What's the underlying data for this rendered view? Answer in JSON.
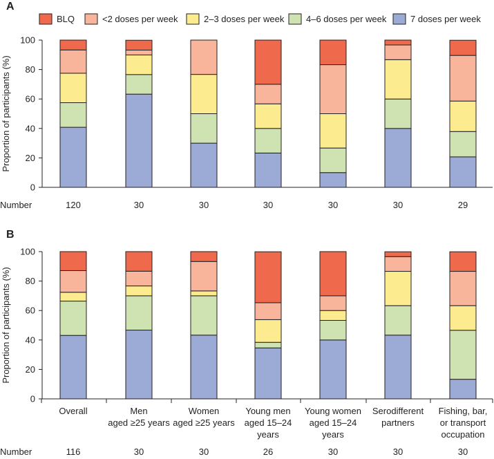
{
  "colors": {
    "BLQ": "#ef6a4c",
    "lt2": "#f9b49c",
    "d23": "#fdeb8f",
    "d46": "#cfe3b2",
    "d7": "#9caad6",
    "stroke": "#231f20"
  },
  "legend": [
    {
      "key": "BLQ",
      "label": "BLQ"
    },
    {
      "key": "lt2",
      "label": "<2 doses per week"
    },
    {
      "key": "d23",
      "label": "2–3 doses per week"
    },
    {
      "key": "d46",
      "label": "4–6 doses per week"
    },
    {
      "key": "d7",
      "label": "7 doses per week"
    }
  ],
  "chart_data": [
    {
      "type": "bar",
      "stacked": true,
      "panel": "A",
      "ylabel": "Proportion of participants (%)",
      "ylim": [
        0,
        100
      ],
      "yticks": [
        0,
        20,
        40,
        60,
        80,
        100
      ],
      "number_label": "Number",
      "numbers": [
        "120",
        "30",
        "30",
        "30",
        "30",
        "30",
        "29"
      ],
      "series_order": [
        "d7",
        "d46",
        "d23",
        "lt2",
        "BLQ"
      ],
      "series": [
        {
          "name": "7 doses per week",
          "key": "d7",
          "values": [
            40.8,
            63.3,
            30.0,
            23.3,
            10.0,
            40.0,
            20.7
          ]
        },
        {
          "name": "4–6 doses per week",
          "key": "d46",
          "values": [
            16.7,
            13.3,
            20.0,
            16.7,
            16.7,
            20.0,
            17.2
          ]
        },
        {
          "name": "2–3 doses per week",
          "key": "d23",
          "values": [
            20.0,
            13.3,
            26.7,
            16.7,
            23.3,
            26.7,
            20.7
          ]
        },
        {
          "name": "<2 doses per week",
          "key": "lt2",
          "values": [
            15.8,
            3.3,
            23.3,
            13.3,
            33.3,
            10.0,
            31.0
          ]
        },
        {
          "name": "BLQ",
          "key": "BLQ",
          "values": [
            6.7,
            6.7,
            0.0,
            30.0,
            16.7,
            3.3,
            10.3
          ]
        }
      ]
    },
    {
      "type": "bar",
      "stacked": true,
      "panel": "B",
      "ylabel": "Proportion of participants (%)",
      "ylim": [
        0,
        100
      ],
      "yticks": [
        0,
        20,
        40,
        60,
        80,
        100
      ],
      "categories": [
        [
          "Overall"
        ],
        [
          "Men",
          "aged ≥25 years"
        ],
        [
          "Women",
          "aged ≥25 years"
        ],
        [
          "Young men",
          "aged 15–24",
          "years"
        ],
        [
          "Young women",
          "aged 15–24",
          "years"
        ],
        [
          "Serodifferent",
          "partners"
        ],
        [
          "Fishing, bar,",
          "or transport",
          "occupation"
        ]
      ],
      "number_label": "Number",
      "numbers": [
        "116",
        "30",
        "30",
        "26",
        "30",
        "30",
        "30"
      ],
      "series_order": [
        "d7",
        "d46",
        "d23",
        "lt2",
        "BLQ"
      ],
      "series": [
        {
          "name": "7 doses per week",
          "key": "d7",
          "values": [
            43.1,
            46.7,
            43.3,
            34.6,
            40.0,
            43.3,
            13.3
          ]
        },
        {
          "name": "4–6 doses per week",
          "key": "d46",
          "values": [
            23.3,
            23.3,
            26.7,
            3.8,
            13.3,
            20.0,
            33.3
          ]
        },
        {
          "name": "2–3 doses per week",
          "key": "d23",
          "values": [
            6.0,
            6.7,
            3.3,
            15.4,
            6.7,
            23.3,
            16.7
          ]
        },
        {
          "name": "<2 doses per week",
          "key": "lt2",
          "values": [
            14.7,
            10.0,
            20.0,
            11.5,
            10.0,
            10.0,
            23.3
          ]
        },
        {
          "name": "BLQ",
          "key": "BLQ",
          "values": [
            12.9,
            13.3,
            6.7,
            34.6,
            30.0,
            3.3,
            13.3
          ]
        }
      ]
    }
  ]
}
